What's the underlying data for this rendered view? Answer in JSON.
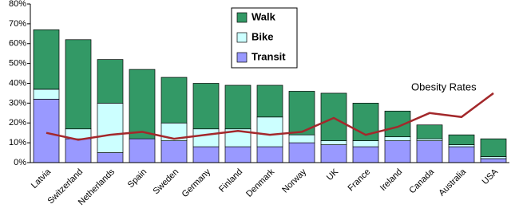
{
  "chart_data": {
    "type": "bar",
    "stacked": true,
    "grid": false,
    "categories": [
      "Latvia",
      "Switzerland",
      "Netherlands",
      "Spain",
      "Sweden",
      "Germany",
      "Finland",
      "Denmark",
      "Norway",
      "UK",
      "France",
      "Ireland",
      "Canada",
      "Australia",
      "USA"
    ],
    "series": [
      {
        "name": "Transit",
        "color": "#9999ff",
        "values": [
          32,
          12,
          5,
          12,
          11,
          8,
          8,
          8,
          10,
          9,
          8,
          11,
          11,
          8,
          2
        ]
      },
      {
        "name": "Bike",
        "color": "#ccffff",
        "values": [
          5,
          5,
          25,
          0,
          9,
          9,
          9,
          15,
          4,
          2,
          3,
          2,
          1,
          1,
          1
        ]
      },
      {
        "name": "Walk",
        "color": "#339966",
        "values": [
          30,
          45,
          22,
          35,
          23,
          23,
          22,
          16,
          22,
          24,
          19,
          13,
          7,
          5,
          9
        ]
      },
      {
        "name": "Obesity Rates",
        "type": "line",
        "color": "#a3282b",
        "values": [
          15,
          11.5,
          14,
          15.5,
          12,
          14,
          16,
          14,
          15.5,
          22.5,
          14,
          18,
          25,
          23,
          35
        ]
      }
    ],
    "ylim": [
      0,
      80
    ],
    "yticks": [
      {
        "value": 0,
        "label": "0%"
      },
      {
        "value": 10,
        "label": "10%"
      },
      {
        "value": 20,
        "label": "20%"
      },
      {
        "value": 30,
        "label": "30%"
      },
      {
        "value": 40,
        "label": "40%"
      },
      {
        "value": 50,
        "label": "50%"
      },
      {
        "value": 60,
        "label": "60%"
      },
      {
        "value": 70,
        "label": "70%"
      },
      {
        "value": 80,
        "label": "80%"
      }
    ]
  }
}
